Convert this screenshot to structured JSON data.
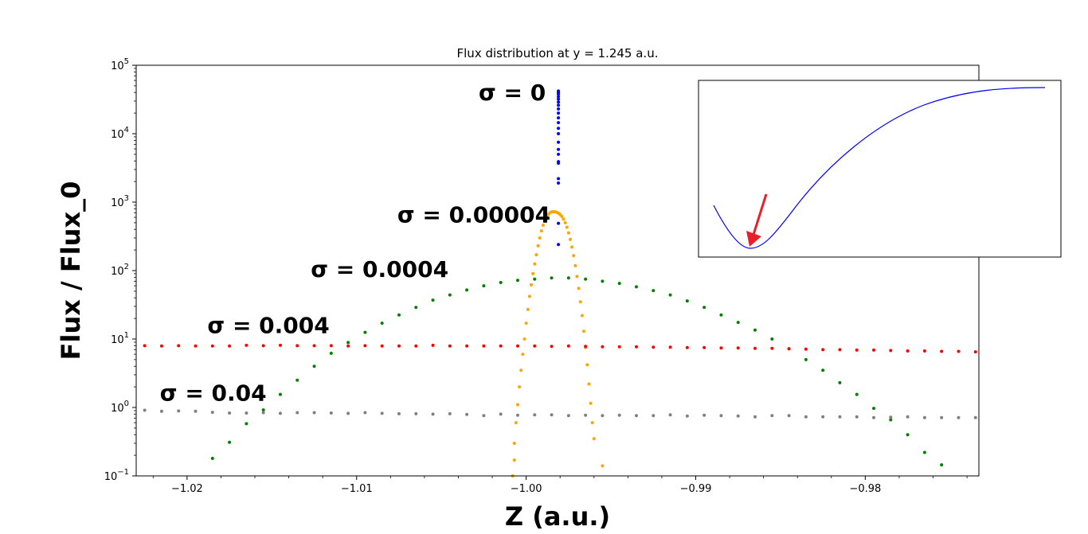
{
  "chart_data": {
    "type": "scatter",
    "title": "Flux distribution at y = 1.245 a.u.",
    "xlabel": "Z (a.u.)",
    "ylabel": "Flux / Flux_0",
    "xlim": [
      -1.023,
      -0.9733
    ],
    "ylim": [
      0.1,
      100000
    ],
    "yscale": "log",
    "grid": false,
    "x_ticks": [
      -1.02,
      -1.01,
      -1.0,
      -0.99,
      -0.98
    ],
    "x_tick_labels": [
      "−1.02",
      "−1.01",
      "−1.00",
      "−0.99",
      "−0.98"
    ],
    "y_ticks": [
      {
        "value": 0.1,
        "base": "10",
        "exp": "−1"
      },
      {
        "value": 1,
        "base": "10",
        "exp": "0"
      },
      {
        "value": 10,
        "base": "10",
        "exp": "1"
      },
      {
        "value": 100,
        "base": "10",
        "exp": "2"
      },
      {
        "value": 1000,
        "base": "10",
        "exp": "3"
      },
      {
        "value": 10000,
        "base": "10",
        "exp": "4"
      },
      {
        "value": 100000,
        "base": "10",
        "exp": "5"
      }
    ],
    "series": [
      {
        "label": "σ = 0",
        "color": "#0000ff",
        "points": [
          [
            -0.9981,
            42000
          ],
          [
            -0.9981,
            40000
          ],
          [
            -0.9981,
            38000
          ],
          [
            -0.9981,
            35000
          ],
          [
            -0.9981,
            32000
          ],
          [
            -0.9981,
            29000
          ],
          [
            -0.9981,
            26000
          ],
          [
            -0.9981,
            23000
          ],
          [
            -0.9981,
            20000
          ],
          [
            -0.9981,
            17000
          ],
          [
            -0.9981,
            14500
          ],
          [
            -0.9981,
            12000
          ],
          [
            -0.9981,
            10000
          ],
          [
            -0.9981,
            7500
          ],
          [
            -0.9981,
            5900
          ],
          [
            -0.9981,
            5000
          ],
          [
            -0.9981,
            3900
          ],
          [
            -0.9981,
            3700
          ],
          [
            -0.9981,
            2200
          ],
          [
            -0.9981,
            1900
          ],
          [
            -0.9981,
            490
          ],
          [
            -0.9981,
            240
          ]
        ]
      },
      {
        "label": "σ = 0.00004",
        "color": "#ffa500",
        "points": [
          [
            -1.0008,
            0.1
          ],
          [
            -1.0007,
            0.17
          ],
          [
            -1.0007,
            0.3
          ],
          [
            -1.0006,
            0.6
          ],
          [
            -1.0005,
            1.1
          ],
          [
            -1.0004,
            2.0
          ],
          [
            -1.0003,
            3.5
          ],
          [
            -1.0002,
            6
          ],
          [
            -1.0001,
            10
          ],
          [
            -1.0,
            17
          ],
          [
            -0.9999,
            27
          ],
          [
            -0.9998,
            42
          ],
          [
            -0.9997,
            62
          ],
          [
            -0.9996,
            90
          ],
          [
            -0.9995,
            125
          ],
          [
            -0.9994,
            170
          ],
          [
            -0.9993,
            230
          ],
          [
            -0.9992,
            300
          ],
          [
            -0.9991,
            380
          ],
          [
            -0.999,
            460
          ],
          [
            -0.9989,
            540
          ],
          [
            -0.9988,
            610
          ],
          [
            -0.9987,
            660
          ],
          [
            -0.9986,
            700
          ],
          [
            -0.9985,
            720
          ],
          [
            -0.9984,
            725
          ],
          [
            -0.9983,
            722
          ],
          [
            -0.9982,
            710
          ],
          [
            -0.9981,
            690
          ],
          [
            -0.998,
            660
          ],
          [
            -0.9979,
            620
          ],
          [
            -0.9978,
            565
          ],
          [
            -0.9977,
            500
          ],
          [
            -0.9976,
            430
          ],
          [
            -0.9975,
            355
          ],
          [
            -0.9974,
            285
          ],
          [
            -0.9973,
            220
          ],
          [
            -0.9972,
            165
          ],
          [
            -0.9971,
            118
          ],
          [
            -0.997,
            82
          ],
          [
            -0.9969,
            55
          ],
          [
            -0.9968,
            35
          ],
          [
            -0.9967,
            22
          ],
          [
            -0.9966,
            13
          ],
          [
            -0.9965,
            7.5
          ],
          [
            -0.9964,
            4.2
          ],
          [
            -0.9963,
            2.2
          ],
          [
            -0.9962,
            1.15
          ],
          [
            -0.9961,
            0.6
          ],
          [
            -0.996,
            0.35
          ],
          [
            -0.9955,
            0.14
          ]
        ]
      },
      {
        "label": "σ = 0.0004",
        "color": "#008000",
        "points": [
          [
            -1.0185,
            0.18
          ],
          [
            -1.0175,
            0.31
          ],
          [
            -1.0165,
            0.58
          ],
          [
            -1.0155,
            0.92
          ],
          [
            -1.0145,
            1.55
          ],
          [
            -1.0135,
            2.5
          ],
          [
            -1.0125,
            4.0
          ],
          [
            -1.0115,
            6.2
          ],
          [
            -1.0105,
            8.9
          ],
          [
            -1.0095,
            12.5
          ],
          [
            -1.0085,
            17
          ],
          [
            -1.0075,
            22.5
          ],
          [
            -1.0065,
            29
          ],
          [
            -1.0055,
            37
          ],
          [
            -1.0045,
            44
          ],
          [
            -1.0035,
            52
          ],
          [
            -1.0025,
            60
          ],
          [
            -1.0015,
            67
          ],
          [
            -1.0005,
            72
          ],
          [
            -0.9995,
            75
          ],
          [
            -0.9985,
            78
          ],
          [
            -0.9975,
            78
          ],
          [
            -0.9965,
            75
          ],
          [
            -0.9955,
            70
          ],
          [
            -0.9945,
            65
          ],
          [
            -0.9935,
            58
          ],
          [
            -0.9925,
            51
          ],
          [
            -0.9915,
            44
          ],
          [
            -0.9905,
            36
          ],
          [
            -0.9895,
            29
          ],
          [
            -0.9885,
            22.5
          ],
          [
            -0.9875,
            17.5
          ],
          [
            -0.9865,
            13.5
          ],
          [
            -0.9855,
            10
          ],
          [
            -0.9845,
            7.2
          ],
          [
            -0.9835,
            5
          ],
          [
            -0.9825,
            3.5
          ],
          [
            -0.9815,
            2.3
          ],
          [
            -0.9805,
            1.55
          ],
          [
            -0.9795,
            0.97
          ],
          [
            -0.9785,
            0.66
          ],
          [
            -0.9775,
            0.4
          ],
          [
            -0.9765,
            0.22
          ],
          [
            -0.9755,
            0.145
          ]
        ]
      },
      {
        "label": "σ = 0.004",
        "color": "#ff0000",
        "points": [
          [
            -1.0225,
            8.0
          ],
          [
            -1.0215,
            7.9
          ],
          [
            -1.0205,
            8.0
          ],
          [
            -1.0195,
            7.9
          ],
          [
            -1.0185,
            7.9
          ],
          [
            -1.0175,
            7.9
          ],
          [
            -1.0165,
            8.1
          ],
          [
            -1.0155,
            8.0
          ],
          [
            -1.0145,
            8.1
          ],
          [
            -1.0135,
            8.0
          ],
          [
            -1.0125,
            8.0
          ],
          [
            -1.0115,
            8.0
          ],
          [
            -1.0105,
            7.9
          ],
          [
            -1.0095,
            8.0
          ],
          [
            -1.0085,
            7.9
          ],
          [
            -1.0075,
            7.9
          ],
          [
            -1.0065,
            7.9
          ],
          [
            -1.0055,
            8.1
          ],
          [
            -1.0045,
            7.9
          ],
          [
            -1.0035,
            7.9
          ],
          [
            -1.0025,
            7.9
          ],
          [
            -1.0015,
            7.9
          ],
          [
            -1.0005,
            7.9
          ],
          [
            -0.9995,
            7.9
          ],
          [
            -0.9985,
            7.8
          ],
          [
            -0.9975,
            7.9
          ],
          [
            -0.9965,
            7.8
          ],
          [
            -0.9955,
            7.7
          ],
          [
            -0.9945,
            7.7
          ],
          [
            -0.9935,
            7.7
          ],
          [
            -0.9925,
            7.6
          ],
          [
            -0.9915,
            7.6
          ],
          [
            -0.9905,
            7.5
          ],
          [
            -0.9895,
            7.5
          ],
          [
            -0.9885,
            7.4
          ],
          [
            -0.9875,
            7.4
          ],
          [
            -0.9865,
            7.3
          ],
          [
            -0.9855,
            7.3
          ],
          [
            -0.9845,
            7.2
          ],
          [
            -0.9835,
            7.1
          ],
          [
            -0.9825,
            7.0
          ],
          [
            -0.9815,
            7.0
          ],
          [
            -0.9805,
            6.9
          ],
          [
            -0.9795,
            6.9
          ],
          [
            -0.9785,
            6.8
          ],
          [
            -0.9775,
            6.7
          ],
          [
            -0.9765,
            6.7
          ],
          [
            -0.9755,
            6.6
          ],
          [
            -0.9745,
            6.6
          ],
          [
            -0.9735,
            6.5
          ]
        ]
      },
      {
        "label": "σ = 0.04",
        "color": "#808080",
        "points": [
          [
            -1.0225,
            0.91
          ],
          [
            -1.0215,
            0.88
          ],
          [
            -1.0205,
            0.89
          ],
          [
            -1.0195,
            0.88
          ],
          [
            -1.0185,
            0.85
          ],
          [
            -1.0175,
            0.83
          ],
          [
            -1.0165,
            0.83
          ],
          [
            -1.0155,
            0.84
          ],
          [
            -1.0145,
            0.82
          ],
          [
            -1.0135,
            0.84
          ],
          [
            -1.0125,
            0.84
          ],
          [
            -1.0115,
            0.83
          ],
          [
            -1.0105,
            0.82
          ],
          [
            -1.0095,
            0.84
          ],
          [
            -1.0085,
            0.82
          ],
          [
            -1.0075,
            0.81
          ],
          [
            -1.0065,
            0.81
          ],
          [
            -1.0055,
            0.8
          ],
          [
            -1.0045,
            0.81
          ],
          [
            -1.0035,
            0.79
          ],
          [
            -1.0025,
            0.76
          ],
          [
            -1.0015,
            0.8
          ],
          [
            -1.0005,
            0.77
          ],
          [
            -0.9995,
            0.78
          ],
          [
            -0.9985,
            0.78
          ],
          [
            -0.9975,
            0.76
          ],
          [
            -0.9965,
            0.77
          ],
          [
            -0.9955,
            0.76
          ],
          [
            -0.9945,
            0.77
          ],
          [
            -0.9935,
            0.76
          ],
          [
            -0.9925,
            0.76
          ],
          [
            -0.9915,
            0.78
          ],
          [
            -0.9905,
            0.75
          ],
          [
            -0.9895,
            0.77
          ],
          [
            -0.9885,
            0.76
          ],
          [
            -0.9875,
            0.75
          ],
          [
            -0.9865,
            0.73
          ],
          [
            -0.9855,
            0.76
          ],
          [
            -0.9845,
            0.76
          ],
          [
            -0.9835,
            0.73
          ],
          [
            -0.9825,
            0.73
          ],
          [
            -0.9815,
            0.73
          ],
          [
            -0.9805,
            0.73
          ],
          [
            -0.9795,
            0.71
          ],
          [
            -0.9785,
            0.72
          ],
          [
            -0.9775,
            0.73
          ],
          [
            -0.9765,
            0.71
          ],
          [
            -0.9755,
            0.71
          ],
          [
            -0.9745,
            0.71
          ],
          [
            -0.9735,
            0.71
          ]
        ]
      }
    ],
    "inset": {
      "description": "curve",
      "line_color": "#0000ff",
      "arrow_color": "#e8202a"
    }
  }
}
